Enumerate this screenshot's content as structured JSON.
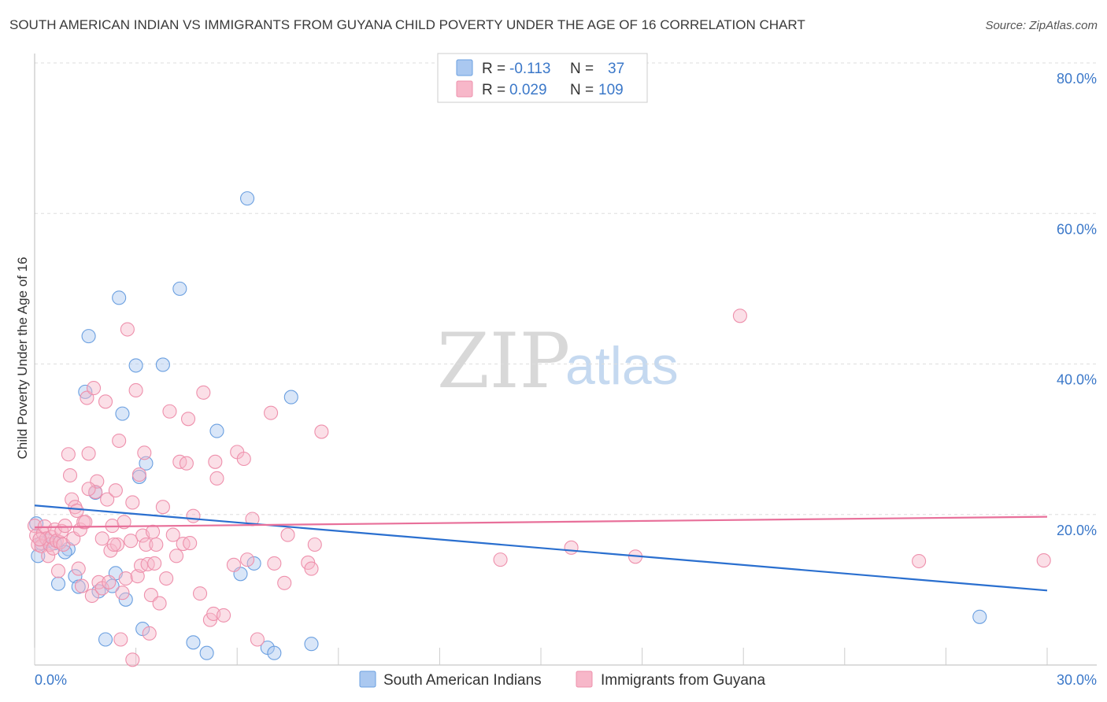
{
  "title": "SOUTH AMERICAN INDIAN VS IMMIGRANTS FROM GUYANA CHILD POVERTY UNDER THE AGE OF 16 CORRELATION CHART",
  "source": "Source: ZipAtlas.com",
  "watermark": {
    "zip": "ZIP",
    "atlas": "atlas"
  },
  "legend": {
    "rows": [
      {
        "r_label": "R = ",
        "r_value": "-0.113",
        "n_label": "N = ",
        "n_value": "37",
        "color": "#aac8f0"
      },
      {
        "r_label": "R = ",
        "r_value": "0.029",
        "n_label": "N = ",
        "n_value": "109",
        "color": "#f7b7c9"
      }
    ]
  },
  "bottom_legend": [
    "South American Indians",
    "Immigrants from Guyana"
  ],
  "chart_data": {
    "type": "scatter",
    "title": "SOUTH AMERICAN INDIAN VS IMMIGRANTS FROM GUYANA CHILD POVERTY UNDER THE AGE OF 16 CORRELATION CHART",
    "xlabel": "",
    "ylabel": "Child Poverty Under the Age of 16",
    "xlim": [
      0,
      30
    ],
    "ylim": [
      0,
      80
    ],
    "x_tick_labels": [
      "0.0%",
      "30.0%"
    ],
    "y_ticks": [
      20,
      40,
      60,
      80
    ],
    "y_tick_labels": [
      "20.0%",
      "40.0%",
      "60.0%",
      "80.0%"
    ],
    "series": [
      {
        "name": "South American Indians",
        "color": "#6a9fe0",
        "fill": "#aac8f0",
        "trend": {
          "x0": 0,
          "y0": 21.2,
          "x1": 30,
          "y1": 9.9,
          "color": "#2a6fcf"
        },
        "points": [
          [
            0.05,
            18.8
          ],
          [
            0.1,
            14.5
          ],
          [
            0.4,
            16.5
          ],
          [
            0.6,
            16.2
          ],
          [
            0.7,
            10.8
          ],
          [
            1.0,
            15.4
          ],
          [
            1.2,
            11.8
          ],
          [
            1.3,
            10.4
          ],
          [
            1.5,
            36.3
          ],
          [
            1.6,
            43.7
          ],
          [
            1.8,
            22.9
          ],
          [
            1.9,
            9.8
          ],
          [
            2.1,
            3.4
          ],
          [
            2.3,
            10.5
          ],
          [
            2.4,
            12.2
          ],
          [
            2.5,
            48.8
          ],
          [
            2.6,
            33.4
          ],
          [
            2.7,
            8.7
          ],
          [
            3.0,
            39.8
          ],
          [
            3.1,
            25.0
          ],
          [
            3.2,
            4.8
          ],
          [
            3.3,
            26.8
          ],
          [
            3.8,
            39.9
          ],
          [
            4.3,
            50.0
          ],
          [
            4.7,
            3.0
          ],
          [
            5.1,
            1.6
          ],
          [
            5.4,
            31.1
          ],
          [
            6.1,
            12.1
          ],
          [
            6.3,
            62.0
          ],
          [
            6.5,
            13.5
          ],
          [
            6.9,
            2.3
          ],
          [
            7.1,
            1.6
          ],
          [
            7.6,
            35.6
          ],
          [
            8.2,
            2.8
          ],
          [
            0.2,
            16.2
          ],
          [
            0.9,
            15.0
          ],
          [
            28.0,
            6.4
          ]
        ]
      },
      {
        "name": "Immigrants from Guyana",
        "color": "#ee90ac",
        "fill": "#f7b7c9",
        "trend": {
          "x0": 0,
          "y0": 18.3,
          "x1": 30,
          "y1": 19.7,
          "color": "#e8709a"
        },
        "points": [
          [
            0.0,
            18.5
          ],
          [
            0.05,
            17.2
          ],
          [
            0.1,
            16.0
          ],
          [
            0.2,
            15.8
          ],
          [
            0.25,
            17.5
          ],
          [
            0.3,
            18.4
          ],
          [
            0.35,
            16.8
          ],
          [
            0.4,
            14.5
          ],
          [
            0.45,
            16.0
          ],
          [
            0.5,
            17.0
          ],
          [
            0.55,
            15.5
          ],
          [
            0.6,
            18.0
          ],
          [
            0.65,
            16.5
          ],
          [
            0.7,
            12.5
          ],
          [
            0.75,
            16.3
          ],
          [
            0.8,
            17.8
          ],
          [
            0.85,
            16.0
          ],
          [
            0.9,
            18.5
          ],
          [
            1.0,
            28.0
          ],
          [
            1.05,
            25.2
          ],
          [
            1.1,
            22.0
          ],
          [
            1.15,
            16.8
          ],
          [
            1.2,
            21.0
          ],
          [
            1.25,
            20.5
          ],
          [
            1.3,
            12.8
          ],
          [
            1.35,
            18.0
          ],
          [
            1.4,
            10.5
          ],
          [
            1.45,
            19.0
          ],
          [
            1.5,
            19.0
          ],
          [
            1.55,
            35.5
          ],
          [
            1.6,
            28.1
          ],
          [
            1.7,
            9.2
          ],
          [
            1.75,
            36.8
          ],
          [
            1.8,
            23.0
          ],
          [
            1.85,
            24.4
          ],
          [
            1.9,
            11.0
          ],
          [
            2.0,
            10.2
          ],
          [
            2.0,
            16.8
          ],
          [
            2.1,
            35.0
          ],
          [
            2.15,
            22.0
          ],
          [
            2.2,
            11.0
          ],
          [
            2.25,
            15.2
          ],
          [
            2.3,
            18.5
          ],
          [
            2.4,
            23.2
          ],
          [
            2.45,
            16.0
          ],
          [
            2.5,
            29.8
          ],
          [
            2.55,
            3.4
          ],
          [
            2.6,
            9.6
          ],
          [
            2.65,
            19.0
          ],
          [
            2.7,
            11.5
          ],
          [
            2.75,
            44.6
          ],
          [
            2.85,
            16.5
          ],
          [
            2.9,
            0.7
          ],
          [
            2.9,
            21.6
          ],
          [
            3.0,
            36.5
          ],
          [
            3.05,
            11.8
          ],
          [
            3.1,
            25.3
          ],
          [
            3.15,
            13.2
          ],
          [
            3.2,
            17.2
          ],
          [
            3.25,
            28.2
          ],
          [
            3.3,
            16.0
          ],
          [
            3.35,
            13.4
          ],
          [
            3.4,
            4.2
          ],
          [
            3.45,
            9.3
          ],
          [
            3.5,
            17.7
          ],
          [
            3.55,
            13.5
          ],
          [
            3.6,
            16.0
          ],
          [
            3.7,
            8.2
          ],
          [
            3.8,
            21.0
          ],
          [
            3.9,
            11.5
          ],
          [
            4.0,
            33.7
          ],
          [
            4.1,
            17.3
          ],
          [
            4.2,
            14.5
          ],
          [
            4.3,
            27.0
          ],
          [
            4.4,
            16.1
          ],
          [
            4.5,
            26.8
          ],
          [
            4.55,
            32.7
          ],
          [
            4.6,
            16.2
          ],
          [
            4.7,
            19.8
          ],
          [
            4.9,
            9.5
          ],
          [
            5.0,
            36.2
          ],
          [
            5.2,
            6.0
          ],
          [
            5.3,
            6.8
          ],
          [
            5.35,
            27.0
          ],
          [
            5.6,
            6.6
          ],
          [
            5.9,
            13.3
          ],
          [
            6.0,
            28.3
          ],
          [
            6.2,
            27.4
          ],
          [
            6.45,
            19.4
          ],
          [
            6.6,
            3.4
          ],
          [
            7.0,
            33.5
          ],
          [
            7.1,
            13.5
          ],
          [
            7.4,
            10.9
          ],
          [
            7.5,
            17.3
          ],
          [
            8.1,
            13.6
          ],
          [
            8.2,
            12.8
          ],
          [
            8.3,
            16.0
          ],
          [
            8.5,
            31.0
          ],
          [
            13.8,
            14.0
          ],
          [
            15.9,
            15.6
          ],
          [
            17.8,
            14.4
          ],
          [
            20.9,
            46.4
          ],
          [
            26.2,
            13.8
          ],
          [
            29.9,
            13.9
          ],
          [
            1.6,
            23.4
          ],
          [
            2.35,
            16.0
          ],
          [
            0.15,
            16.7
          ],
          [
            6.3,
            14.0
          ],
          [
            5.4,
            24.8
          ]
        ]
      }
    ]
  }
}
